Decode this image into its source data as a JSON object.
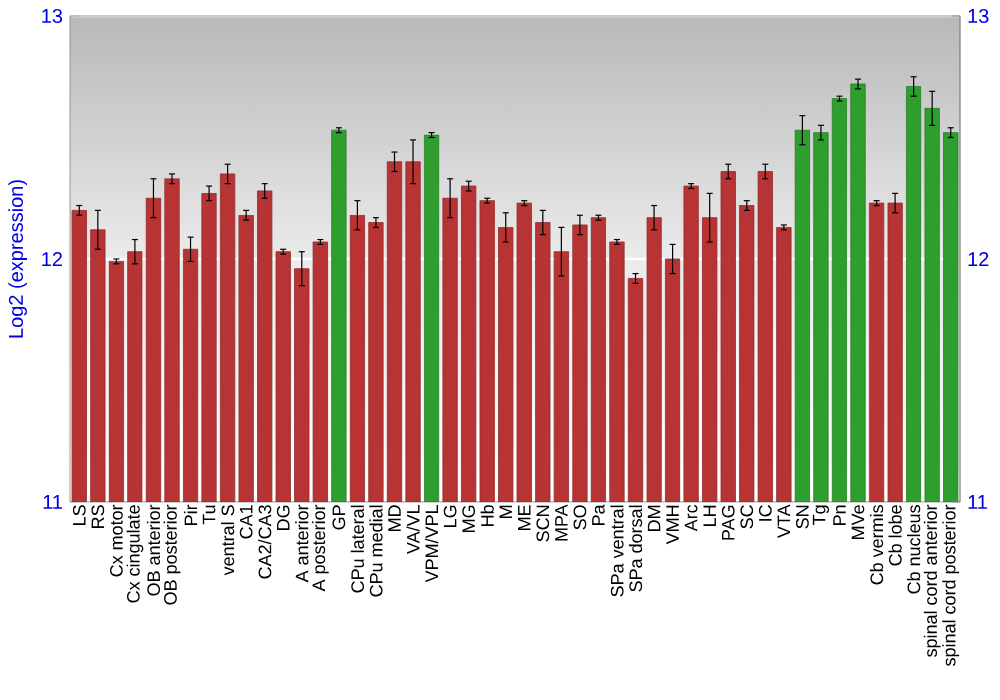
{
  "chart_data": {
    "type": "bar",
    "ylabel": "Log2 (expression)",
    "categories": [
      "LS",
      "RS",
      "Cx motor",
      "Cx cingulate",
      "OB anterior",
      "OB posterior",
      "Pir",
      "Tu",
      "ventral S",
      "CA1",
      "CA2/CA3",
      "DG",
      "A anterior",
      "A posterior",
      "GP",
      "CPu lateral",
      "CPu medial",
      "MD",
      "VA/VL",
      "VPM/VPL",
      "LG",
      "MG",
      "Hb",
      "M",
      "ME",
      "SCN",
      "MPA",
      "SO",
      "Pa",
      "SPa ventral",
      "SPa dorsal",
      "DM",
      "VMH",
      "Arc",
      "LH",
      "PAG",
      "SC",
      "IC",
      "VTA",
      "SN",
      "Tg",
      "Pn",
      "MVe",
      "Cb vermis",
      "Cb lobe",
      "Cb nucleus",
      "spinal cord anterior",
      "spinal cord posterior"
    ],
    "values": [
      12.2,
      12.12,
      11.99,
      12.03,
      12.25,
      12.33,
      12.04,
      12.27,
      12.35,
      12.18,
      12.28,
      12.03,
      11.96,
      12.07,
      12.53,
      12.18,
      12.15,
      12.4,
      12.4,
      12.51,
      12.25,
      12.3,
      12.24,
      12.13,
      12.23,
      12.15,
      12.03,
      12.14,
      12.17,
      12.07,
      11.92,
      12.17,
      12.0,
      12.3,
      12.17,
      12.36,
      12.22,
      12.36,
      12.13,
      12.53,
      12.52,
      12.66,
      12.72,
      12.23,
      12.23,
      12.71,
      12.62,
      12.52
    ],
    "errors": [
      0.02,
      0.08,
      0.01,
      0.05,
      0.08,
      0.02,
      0.05,
      0.03,
      0.04,
      0.02,
      0.03,
      0.01,
      0.07,
      0.01,
      0.01,
      0.06,
      0.02,
      0.04,
      0.09,
      0.01,
      0.08,
      0.02,
      0.01,
      0.06,
      0.01,
      0.05,
      0.1,
      0.04,
      0.01,
      0.01,
      0.02,
      0.05,
      0.06,
      0.01,
      0.1,
      0.03,
      0.02,
      0.03,
      0.01,
      0.06,
      0.03,
      0.01,
      0.02,
      0.01,
      0.04,
      0.04,
      0.07,
      0.02
    ],
    "colors": [
      "#b83434",
      "#b83434",
      "#b83434",
      "#b83434",
      "#b83434",
      "#b83434",
      "#b83434",
      "#b83434",
      "#b83434",
      "#b83434",
      "#b83434",
      "#b83434",
      "#b83434",
      "#b83434",
      "#2e9e2e",
      "#b83434",
      "#b83434",
      "#b83434",
      "#b83434",
      "#2e9e2e",
      "#b83434",
      "#b83434",
      "#b83434",
      "#b83434",
      "#b83434",
      "#b83434",
      "#b83434",
      "#b83434",
      "#b83434",
      "#b83434",
      "#b83434",
      "#b83434",
      "#b83434",
      "#b83434",
      "#b83434",
      "#b83434",
      "#b83434",
      "#b83434",
      "#b83434",
      "#2e9e2e",
      "#2e9e2e",
      "#2e9e2e",
      "#2e9e2e",
      "#b83434",
      "#b83434",
      "#2e9e2e",
      "#2e9e2e",
      "#2e9e2e"
    ],
    "ylim": [
      11,
      13
    ],
    "yticks": [
      11,
      12,
      13
    ],
    "y2lim": [
      11,
      13
    ],
    "y2ticks": [
      11,
      12,
      13
    ],
    "grid": "y"
  }
}
